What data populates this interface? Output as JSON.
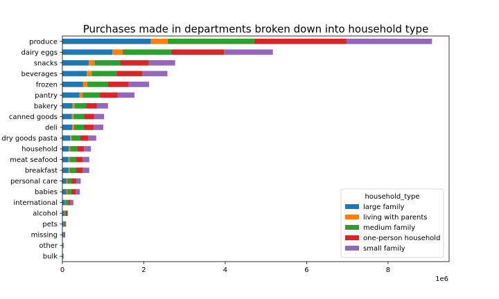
{
  "chart_data": {
    "type": "bar",
    "orientation": "horizontal",
    "stacked": true,
    "title": "Purchases made in departments broken down into household type",
    "x_multiplier_label": "1e6",
    "xlim": [
      0,
      9500000
    ],
    "x_ticks": [
      0,
      2000000,
      4000000,
      6000000,
      8000000
    ],
    "x_tick_labels": [
      "0",
      "2",
      "4",
      "6",
      "8"
    ],
    "grid": false,
    "legend_title": "household_type",
    "legend_position": "lower-right",
    "categories": [
      "produce",
      "dairy eggs",
      "snacks",
      "beverages",
      "frozen",
      "pantry",
      "bakery",
      "canned goods",
      "deli",
      "dry goods pasta",
      "household",
      "meat seafood",
      "breakfast",
      "personal care",
      "babies",
      "international",
      "alcohol",
      "pets",
      "missing",
      "other",
      "bulk"
    ],
    "series": [
      {
        "name": "large family",
        "color": "#1f77b4",
        "values": [
          2170000,
          1230000,
          650000,
          600000,
          510000,
          420000,
          250000,
          230000,
          240000,
          190000,
          160000,
          150000,
          150000,
          100000,
          100000,
          60000,
          40000,
          30000,
          20000,
          10000,
          10000
        ]
      },
      {
        "name": "living with parents",
        "color": "#ff7f0e",
        "values": [
          420000,
          250000,
          140000,
          120000,
          100000,
          80000,
          50000,
          45000,
          45000,
          40000,
          30000,
          30000,
          30000,
          20000,
          20000,
          10000,
          5000,
          5000,
          4000,
          2000,
          2000
        ]
      },
      {
        "name": "medium family",
        "color": "#2ca02c",
        "values": [
          2120000,
          1190000,
          640000,
          610000,
          500000,
          420000,
          280000,
          260000,
          240000,
          200000,
          170000,
          160000,
          160000,
          110000,
          110000,
          70000,
          35000,
          25000,
          20000,
          10000,
          8000
        ]
      },
      {
        "name": "one-person household",
        "color": "#d62728",
        "values": [
          2270000,
          1300000,
          690000,
          640000,
          520000,
          440000,
          270000,
          240000,
          240000,
          200000,
          170000,
          160000,
          160000,
          110000,
          100000,
          60000,
          40000,
          20000,
          16000,
          8000,
          6000
        ]
      },
      {
        "name": "small family",
        "color": "#9467bd",
        "values": [
          2100000,
          1200000,
          650000,
          610000,
          500000,
          410000,
          270000,
          250000,
          240000,
          200000,
          170000,
          160000,
          160000,
          110000,
          100000,
          70000,
          15000,
          12000,
          10000,
          6000,
          4000
        ]
      }
    ]
  }
}
